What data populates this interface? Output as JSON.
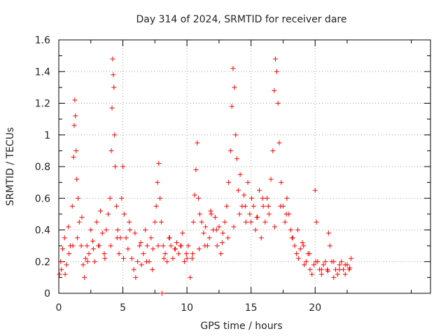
{
  "chart_data": {
    "type": "scatter",
    "title": "Day 314 of 2024, SRMTID for receiver dare",
    "xlabel": "GPS time / hours",
    "ylabel": "SRMTID / TECUs",
    "xlim": [
      0,
      29
    ],
    "ylim": [
      0,
      1.6
    ],
    "x_ticks": [
      0,
      5,
      10,
      15,
      20
    ],
    "x_tick_labels": [
      "0",
      "5",
      "10",
      "15",
      "20"
    ],
    "y_ticks": [
      0,
      0.2,
      0.4,
      0.6,
      0.8,
      1,
      1.2,
      1.4,
      1.6
    ],
    "y_tick_labels": [
      "0",
      "0.2",
      "0.4",
      "0.6",
      "0.8",
      "1",
      "1.2",
      "1.4",
      "1.6"
    ],
    "grid": true,
    "marker": "plus",
    "series": [
      {
        "name": "SRMTID",
        "color": "#ff0000",
        "x": [
          0.05,
          0.15,
          0.3,
          0.45,
          0.6,
          0.75,
          0.9,
          1.05,
          1.15,
          1.2,
          1.25,
          1.3,
          1.35,
          1.4,
          1.5,
          1.6,
          1.75,
          1.9,
          2.0,
          2.1,
          2.2,
          2.35,
          2.5,
          2.65,
          2.8,
          2.95,
          3.1,
          3.25,
          3.4,
          3.55,
          3.7,
          3.85,
          4.0,
          4.1,
          4.15,
          4.2,
          4.25,
          4.3,
          4.35,
          4.4,
          4.5,
          4.6,
          4.7,
          4.8,
          4.9,
          5.0,
          5.1,
          5.25,
          5.4,
          5.55,
          5.7,
          5.85,
          6.0,
          6.15,
          6.3,
          6.45,
          6.6,
          6.75,
          6.9,
          7.05,
          7.2,
          7.35,
          7.5,
          7.6,
          7.7,
          7.8,
          7.9,
          8.0,
          8.05,
          8.15,
          8.3,
          8.45,
          8.6,
          8.75,
          8.9,
          9.05,
          9.2,
          9.35,
          9.5,
          9.65,
          9.8,
          9.95,
          10.1,
          10.25,
          10.4,
          10.5,
          10.6,
          10.7,
          10.8,
          10.9,
          11.0,
          11.15,
          11.3,
          11.45,
          11.6,
          11.75,
          11.9,
          12.05,
          12.2,
          12.35,
          12.5,
          12.65,
          12.8,
          12.95,
          13.1,
          13.25,
          13.4,
          13.5,
          13.6,
          13.7,
          13.8,
          13.9,
          14.0,
          14.15,
          14.3,
          14.45,
          14.6,
          14.75,
          14.9,
          15.05,
          15.2,
          15.35,
          15.5,
          15.65,
          15.8,
          15.95,
          16.1,
          16.25,
          16.4,
          16.55,
          16.7,
          16.8,
          16.9,
          17.0,
          17.1,
          17.2,
          17.35,
          17.5,
          17.65,
          17.8,
          17.95,
          18.1,
          18.25,
          18.4,
          18.55,
          18.7,
          18.85,
          19.0,
          19.15,
          19.3,
          19.45,
          19.6,
          19.75,
          19.9,
          20.0,
          20.1,
          20.2,
          20.35,
          20.5,
          20.65,
          20.8,
          20.95,
          21.05,
          21.15,
          21.3,
          21.45,
          21.6,
          21.75,
          21.9,
          22.05,
          22.2,
          22.35,
          22.5,
          22.65,
          22.8,
          0.2,
          0.5,
          0.8,
          1.1,
          1.45,
          1.8,
          2.25,
          2.7,
          3.15,
          3.6,
          4.05,
          4.55,
          5.05,
          5.5,
          5.95,
          6.4,
          6.85,
          7.3,
          7.75,
          8.2,
          8.65,
          9.1,
          9.55,
          10.0,
          10.45,
          10.95,
          11.4,
          11.85,
          12.3,
          12.75,
          13.2,
          13.65,
          14.1,
          14.55,
          15.0,
          15.45,
          15.9,
          16.35,
          16.85,
          17.3,
          17.75,
          18.2,
          18.65,
          19.1,
          19.55,
          20.05,
          20.5,
          21.0,
          21.45,
          21.9,
          22.35,
          22.7
        ],
        "y": [
          0.12,
          0.2,
          0.28,
          0.35,
          0.18,
          0.42,
          0.3,
          0.55,
          0.86,
          1.06,
          1.22,
          1.12,
          0.9,
          0.72,
          0.6,
          0.45,
          0.3,
          0.18,
          0.1,
          0.22,
          0.3,
          0.25,
          0.4,
          0.33,
          0.2,
          0.45,
          0.3,
          0.52,
          0.38,
          0.25,
          0.4,
          0.5,
          0.6,
          0.9,
          1.17,
          1.48,
          1.38,
          1.3,
          1.0,
          0.8,
          0.55,
          0.4,
          0.25,
          0.35,
          0.6,
          0.8,
          0.5,
          0.35,
          0.28,
          0.4,
          0.22,
          0.15,
          0.1,
          0.2,
          0.3,
          0.18,
          0.25,
          0.4,
          0.3,
          0.2,
          0.35,
          0.28,
          0.45,
          0.55,
          0.7,
          0.82,
          0.6,
          0.45,
          0.0,
          0.3,
          0.25,
          0.2,
          0.35,
          0.3,
          0.22,
          0.28,
          0.32,
          0.25,
          0.3,
          0.38,
          0.2,
          0.25,
          0.3,
          0.1,
          0.22,
          0.45,
          0.62,
          0.78,
          0.95,
          0.6,
          0.5,
          0.45,
          0.38,
          0.42,
          0.3,
          0.35,
          0.5,
          0.4,
          0.48,
          0.3,
          0.42,
          0.25,
          0.38,
          0.45,
          0.55,
          0.7,
          0.9,
          1.18,
          1.42,
          1.3,
          1.0,
          0.85,
          0.65,
          0.75,
          0.55,
          0.62,
          0.45,
          0.7,
          0.5,
          0.6,
          0.55,
          0.4,
          0.48,
          0.65,
          0.35,
          0.55,
          0.45,
          0.6,
          0.5,
          0.72,
          0.9,
          1.28,
          1.48,
          1.4,
          1.2,
          0.95,
          0.7,
          0.55,
          0.45,
          0.6,
          0.5,
          0.4,
          0.35,
          0.3,
          0.25,
          0.22,
          0.28,
          0.32,
          0.18,
          0.2,
          0.25,
          0.15,
          0.12,
          0.18,
          0.65,
          0.45,
          0.2,
          0.15,
          0.12,
          0.18,
          0.2,
          0.15,
          0.38,
          0.3,
          0.2,
          0.1,
          0.15,
          0.12,
          0.18,
          0.2,
          0.15,
          0.12,
          0.18,
          0.15,
          0.22,
          0.15,
          0.12,
          0.25,
          0.3,
          0.35,
          0.48,
          0.2,
          0.28,
          0.3,
          0.22,
          0.3,
          0.35,
          0.22,
          0.45,
          0.38,
          0.32,
          0.2,
          0.15,
          0.3,
          0.22,
          0.35,
          0.28,
          0.3,
          0.22,
          0.25,
          0.28,
          0.3,
          0.52,
          0.4,
          0.32,
          0.35,
          0.42,
          0.5,
          0.55,
          0.45,
          0.48,
          0.6,
          0.55,
          0.42,
          0.55,
          0.5,
          0.35,
          0.4,
          0.3,
          0.25,
          0.2,
          0.15,
          0.14,
          0.2,
          0.15,
          0.18,
          0.16
        ]
      }
    ]
  }
}
